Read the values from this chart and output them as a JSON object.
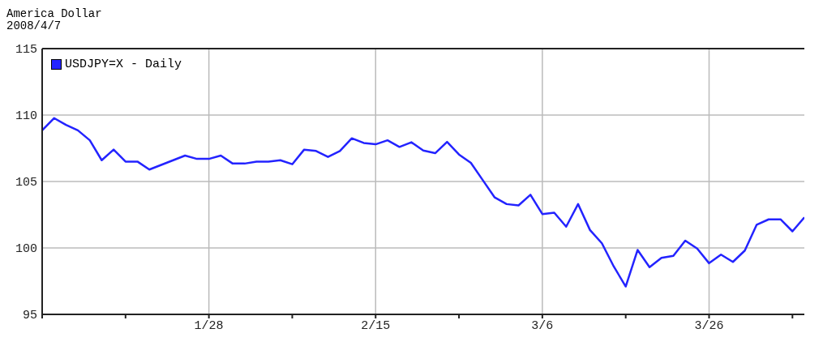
{
  "chart_data": {
    "type": "line",
    "title": "America Dollar",
    "subtitle": "2008/4/7",
    "categories": [
      null,
      null,
      null,
      null,
      null,
      null,
      null,
      null,
      null,
      null,
      null,
      null,
      null,
      null,
      "1/28",
      null,
      null,
      null,
      null,
      null,
      null,
      null,
      null,
      null,
      null,
      null,
      null,
      null,
      "2/15",
      null,
      null,
      null,
      null,
      null,
      null,
      null,
      null,
      null,
      null,
      null,
      null,
      null,
      "3/6",
      null,
      null,
      null,
      null,
      null,
      null,
      null,
      null,
      null,
      null,
      null,
      null,
      null,
      "3/26",
      null,
      null,
      null,
      null,
      null,
      null,
      null,
      null
    ],
    "series": [
      {
        "name": "USDJPY=X - Daily",
        "color": "#2323ff",
        "values": [
          108.85,
          109.77,
          109.26,
          108.85,
          108.1,
          106.6,
          107.4,
          106.5,
          106.5,
          105.9,
          106.25,
          106.6,
          106.95,
          106.7,
          106.7,
          106.95,
          106.35,
          106.35,
          106.5,
          106.5,
          106.6,
          106.3,
          107.4,
          107.3,
          106.85,
          107.3,
          108.25,
          107.9,
          107.8,
          108.1,
          107.6,
          107.95,
          107.33,
          107.13,
          107.98,
          107.03,
          106.4,
          105.1,
          103.8,
          103.3,
          103.2,
          104.0,
          102.55,
          102.65,
          101.6,
          103.3,
          101.35,
          100.35,
          98.6,
          97.1,
          99.85,
          98.55,
          99.25,
          99.4,
          100.55,
          99.95,
          98.85,
          99.5,
          98.95,
          99.8,
          101.75,
          102.15,
          102.15,
          101.25,
          102.3
        ]
      }
    ],
    "ylim": [
      95,
      115
    ],
    "yticks": [
      95,
      100,
      105,
      110,
      115
    ],
    "grid": true,
    "legend": "top left",
    "marker": "none",
    "line_style": "solid"
  }
}
